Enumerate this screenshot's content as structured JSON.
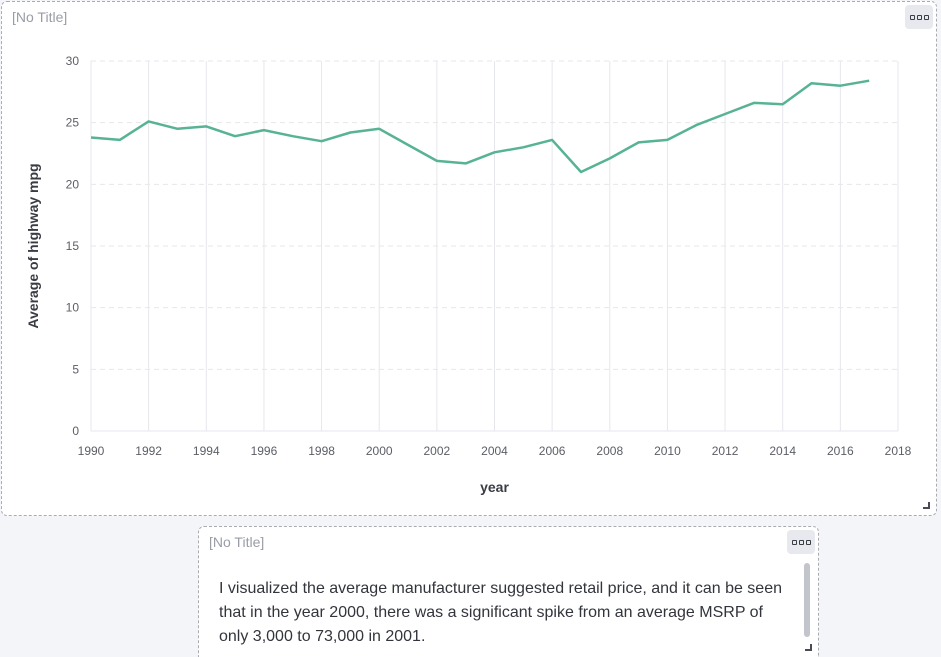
{
  "panels": {
    "chart": {
      "title": "[No Title]"
    },
    "text": {
      "title": "[No Title]",
      "body": "I visualized the average manufacturer suggested retail price, and it can be seen that in the year 2000, there was a significant spike from an average MSRP of only 3,000 to 73,000 in 2001."
    }
  },
  "colors": {
    "line": "#57b394",
    "grid": "#e6e7ec",
    "background": "#f4f5f9"
  },
  "chart_data": {
    "type": "line",
    "title": "",
    "xlabel": "year",
    "ylabel": "Average of highway mpg",
    "xlim": [
      1990,
      2018
    ],
    "ylim": [
      0,
      30
    ],
    "x_ticks": [
      1990,
      1992,
      1994,
      1996,
      1998,
      2000,
      2002,
      2004,
      2006,
      2008,
      2010,
      2012,
      2014,
      2016,
      2018
    ],
    "y_ticks": [
      0,
      5,
      10,
      15,
      20,
      25,
      30
    ],
    "grid": true,
    "series": [
      {
        "x": [
          1990,
          1991,
          1992,
          1993,
          1994,
          1995,
          1996,
          1997,
          1998,
          1999,
          2000,
          2001,
          2002,
          2003,
          2004,
          2005,
          2006,
          2007,
          2008,
          2009,
          2010,
          2011,
          2012,
          2013,
          2014,
          2015,
          2016,
          2017
        ],
        "values": [
          23.8,
          23.6,
          25.1,
          24.5,
          24.7,
          23.9,
          24.4,
          23.9,
          23.5,
          24.2,
          24.5,
          23.2,
          21.9,
          21.7,
          22.6,
          23.0,
          23.6,
          21.0,
          22.1,
          23.4,
          23.6,
          24.8,
          25.7,
          26.6,
          26.5,
          28.2,
          28.0,
          28.4
        ]
      }
    ]
  }
}
